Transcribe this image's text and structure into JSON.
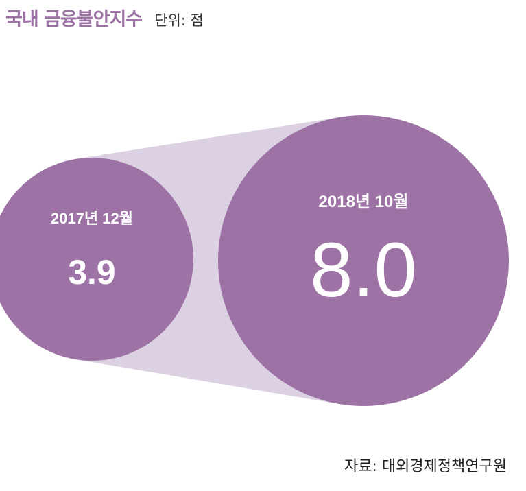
{
  "header": {
    "title": "국내 금융불안지수",
    "unit": "단위: 점"
  },
  "source": "자료: 대외경제정책연구원",
  "colors": {
    "circle": "#9d72a5",
    "connector": "#dcd0e3",
    "label_text": "#ffffff",
    "title": "#9d72a5"
  },
  "chart_data": {
    "type": "bubble",
    "title": "국내 금융불안지수",
    "unit": "단위: 점",
    "categories": [
      "2017년 12월",
      "2018년 10월"
    ],
    "values": [
      3.9,
      8.0
    ],
    "value_labels": [
      "3.9",
      "8.0"
    ]
  }
}
